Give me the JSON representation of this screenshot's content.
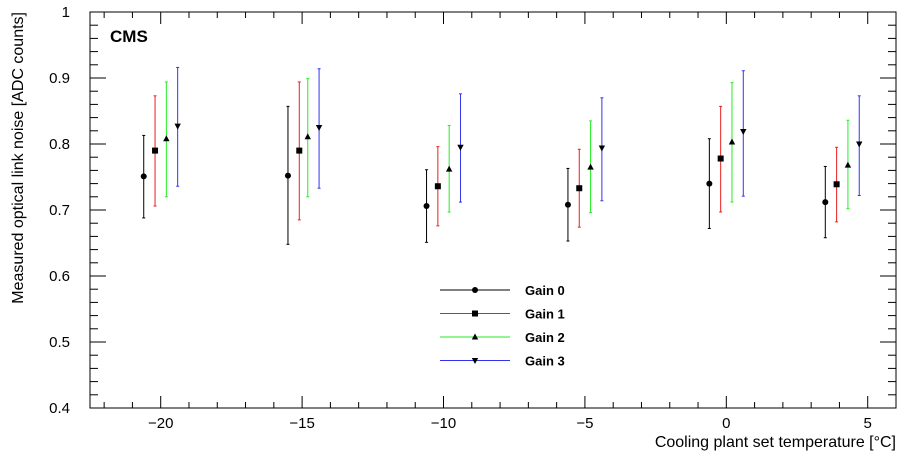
{
  "chart_data": {
    "type": "scatter",
    "annotation": "CMS",
    "xlabel": "Cooling plant set temperature [°C]",
    "ylabel": "Measured optical link noise [ADC counts]",
    "xlim": [
      -22.5,
      6
    ],
    "ylim": [
      0.4,
      1.0
    ],
    "xticks": [
      -20,
      -15,
      -10,
      -5,
      0,
      5
    ],
    "yticks": [
      0.4,
      0.5,
      0.6,
      0.7,
      0.8,
      0.9,
      1
    ],
    "xtick_labels": [
      "−20",
      "−15",
      "−10",
      "−5",
      "0",
      "5"
    ],
    "ytick_labels": [
      "0.4",
      "0.5",
      "0.6",
      "0.7",
      "0.8",
      "0.9",
      "1"
    ],
    "legend_position": "bottom-center",
    "series": [
      {
        "name": "Gain 0",
        "color": "#000000",
        "marker": "circle",
        "x": [
          -20.6,
          -15.5,
          -10.6,
          -5.6,
          -0.6,
          3.5
        ],
        "y": [
          0.751,
          0.752,
          0.706,
          0.708,
          0.74,
          0.712
        ],
        "yerr_low": [
          0.688,
          0.648,
          0.651,
          0.653,
          0.672,
          0.658
        ],
        "yerr_high": [
          0.813,
          0.857,
          0.761,
          0.763,
          0.808,
          0.766
        ]
      },
      {
        "name": "Gain 1",
        "color": "#e8201f",
        "marker": "square",
        "x": [
          -20.2,
          -15.1,
          -10.2,
          -5.2,
          -0.2,
          3.9
        ],
        "y": [
          0.79,
          0.79,
          0.736,
          0.733,
          0.778,
          0.739
        ],
        "yerr_low": [
          0.706,
          0.685,
          0.676,
          0.674,
          0.697,
          0.682
        ],
        "yerr_high": [
          0.873,
          0.894,
          0.796,
          0.792,
          0.857,
          0.795
        ]
      },
      {
        "name": "Gain 2",
        "color": "#22ee22",
        "marker": "triangle-up",
        "x": [
          -19.8,
          -14.8,
          -9.8,
          -4.8,
          0.2,
          4.3
        ],
        "y": [
          0.808,
          0.811,
          0.762,
          0.765,
          0.803,
          0.768
        ],
        "yerr_low": [
          0.72,
          0.72,
          0.697,
          0.696,
          0.712,
          0.702
        ],
        "yerr_high": [
          0.894,
          0.899,
          0.828,
          0.835,
          0.893,
          0.836
        ]
      },
      {
        "name": "Gain 3",
        "color": "#3333ee",
        "marker": "triangle-down",
        "x": [
          -19.4,
          -14.4,
          -9.4,
          -4.4,
          0.6,
          4.7
        ],
        "y": [
          0.827,
          0.825,
          0.795,
          0.794,
          0.819,
          0.8
        ],
        "yerr_low": [
          0.736,
          0.733,
          0.712,
          0.714,
          0.721,
          0.722
        ],
        "yerr_high": [
          0.916,
          0.914,
          0.876,
          0.87,
          0.911,
          0.873
        ]
      }
    ]
  }
}
